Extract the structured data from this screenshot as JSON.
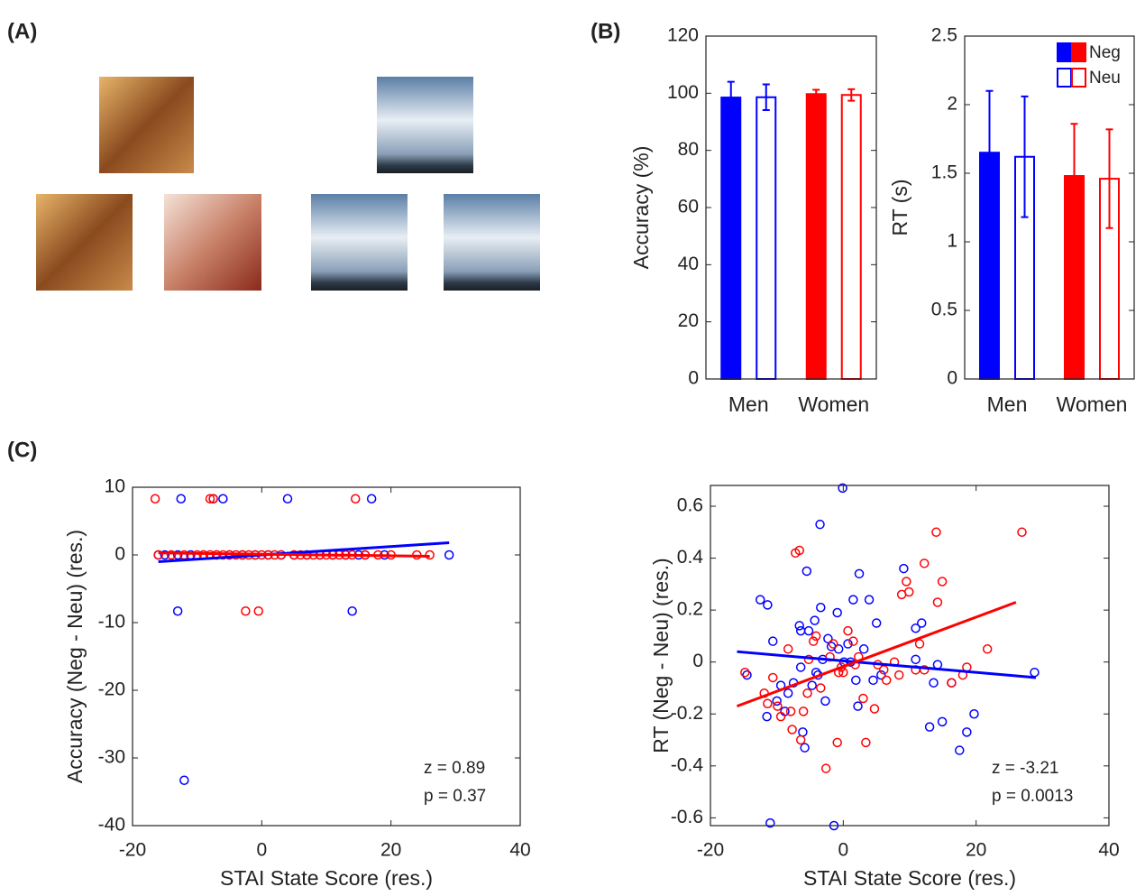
{
  "panels": [
    "(A)",
    "(B)",
    "(C)"
  ],
  "chart_data": [
    {
      "type": "bar",
      "ylabel": "Accuracy (%)",
      "categories": [
        "Men",
        "Women"
      ],
      "colors": [
        "#0000ff",
        "#ff0000"
      ],
      "series": [
        {
          "values": [
            98.5,
            99.7
          ],
          "errors": [
            5.5,
            1.5
          ],
          "filled": true
        },
        {
          "values": [
            98.6,
            99.4
          ],
          "errors": [
            4.5,
            2.0
          ],
          "filled": false
        }
      ],
      "ylim": [
        0,
        120
      ],
      "yticks": [
        0,
        20,
        40,
        60,
        80,
        100,
        120
      ],
      "legend": false
    },
    {
      "type": "bar",
      "ylabel": "RT (s)",
      "categories": [
        "Men",
        "Women"
      ],
      "colors": [
        "#0000ff",
        "#ff0000"
      ],
      "series": [
        {
          "name": "Neg",
          "values": [
            1.65,
            1.48
          ],
          "errors": [
            0.45,
            0.38
          ],
          "filled": true
        },
        {
          "name": "Neu",
          "values": [
            1.62,
            1.46
          ],
          "errors": [
            0.44,
            0.36
          ],
          "filled": false
        }
      ],
      "ylim": [
        0,
        2.5
      ],
      "yticks": [
        0,
        0.5,
        1,
        1.5,
        2,
        2.5
      ],
      "legend": "upper right"
    },
    {
      "type": "scatter",
      "xlabel": "STAI State Score (res.)",
      "ylabel": "Accuracy (Neg - Neu) (res.)",
      "xlim": [
        -20,
        40
      ],
      "xticks": [
        -20,
        0,
        20,
        40
      ],
      "ylim": [
        -40,
        10
      ],
      "yticks": [
        -40,
        -30,
        -20,
        -10,
        0,
        10
      ],
      "annotations": [
        "z = 0.89",
        "p = 0.37"
      ],
      "series": [
        {
          "color": "#0000ff",
          "x": [
            -12.5,
            -7.5,
            -6,
            4,
            17,
            -13,
            14,
            -12,
            -16,
            -15,
            -13,
            -11,
            -9,
            -7,
            -5,
            -3,
            -1,
            1,
            3,
            5,
            7,
            9,
            11,
            13,
            15,
            16,
            19,
            29
          ],
          "values": [
            8.3,
            8.3,
            8.3,
            8.3,
            8.3,
            -8.3,
            -8.3,
            -33.3,
            0,
            0,
            0,
            0,
            0,
            0,
            0,
            0,
            0,
            0,
            0,
            0,
            0,
            0,
            0,
            0,
            0,
            0,
            0,
            0
          ]
        },
        {
          "color": "#ff0000",
          "x": [
            -16.5,
            -8,
            -7.5,
            14.5,
            -2.5,
            -0.5,
            -16,
            -14,
            -12,
            -10,
            -9,
            -8,
            -7,
            -6,
            -5,
            -4,
            -3,
            -2,
            -1,
            0,
            1,
            2,
            3,
            5,
            6,
            7,
            8,
            9,
            10,
            11,
            12,
            13,
            14,
            16,
            18,
            20,
            24,
            26
          ],
          "values": [
            8.3,
            8.3,
            8.3,
            8.3,
            -8.3,
            -8.3,
            0,
            0,
            0,
            0,
            0,
            0,
            0,
            0,
            0,
            0,
            0,
            0,
            0,
            0,
            0,
            0,
            0,
            0,
            0,
            0,
            0,
            0,
            0,
            0,
            0,
            0,
            0,
            0,
            0,
            0,
            0,
            0
          ]
        }
      ],
      "fits": [
        {
          "color": "#0000ff",
          "x": [
            -16,
            29
          ],
          "values": [
            -1,
            1.8
          ]
        },
        {
          "color": "#ff0000",
          "x": [
            -16,
            26
          ],
          "values": [
            0.3,
            -0.2
          ]
        }
      ]
    },
    {
      "type": "scatter",
      "xlabel": "STAI State Score (res.)",
      "ylabel": "RT (Neg - Neu) (res.)",
      "xlim": [
        -20,
        40
      ],
      "xticks": [
        -20,
        0,
        20,
        40
      ],
      "ylim": [
        -0.63,
        0.68
      ],
      "yticks": [
        -0.6,
        -0.4,
        -0.2,
        0,
        0.2,
        0.4,
        0.6
      ],
      "annotations": [
        "z = -3.21",
        "p = 0.0013"
      ],
      "series": [
        {
          "color": "#0000ff",
          "x": [
            -14.5,
            -12.5,
            -11.4,
            -11.5,
            -11.0,
            -10.6,
            -10.0,
            -9.4,
            -8.8,
            -8.3,
            -7.5,
            -6.6,
            -6.4,
            -6.4,
            -6.1,
            -5.8,
            -5.5,
            -5.2,
            -4.7,
            -4.3,
            -4.1,
            -3.8,
            -3.5,
            -3.4,
            -3.1,
            -2.7,
            -2.3,
            -1.8,
            -1.4,
            -0.9,
            -0.7,
            -0.1,
            0.1,
            0.7,
            1.1,
            1.5,
            1.9,
            2.2,
            2.4,
            3.1,
            3.9,
            4.5,
            5.0,
            5.7,
            9.1,
            10.9,
            10.9,
            11.8,
            13.0,
            13.6,
            14.2,
            14.9,
            16.3,
            17.5,
            18.6,
            19.7,
            28.8
          ],
          "values": [
            -0.05,
            0.24,
            0.22,
            -0.21,
            -0.62,
            0.08,
            -0.15,
            -0.09,
            -0.19,
            -0.12,
            -0.08,
            0.14,
            0.12,
            -0.02,
            -0.27,
            -0.33,
            0.35,
            0.12,
            -0.09,
            0.16,
            -0.04,
            -0.05,
            0.53,
            0.21,
            0.01,
            -0.15,
            0.09,
            0.06,
            -0.63,
            0.19,
            0.05,
            0.67,
            0.0,
            0.07,
            0.0,
            0.24,
            -0.07,
            -0.17,
            0.34,
            0.05,
            0.24,
            -0.07,
            0.15,
            -0.05,
            0.36,
            0.13,
            0.01,
            0.15,
            -0.25,
            -0.08,
            -0.01,
            -0.23,
            -0.08,
            -0.34,
            -0.27,
            -0.2,
            -0.04
          ]
        },
        {
          "color": "#ff0000",
          "x": [
            -14.8,
            -11.9,
            -11.4,
            -10.6,
            -9.9,
            -9.4,
            -8.3,
            -7.9,
            -7.7,
            -7.2,
            -6.6,
            -6.4,
            -6.0,
            -5.4,
            -5.2,
            -4.5,
            -4.1,
            -3.4,
            -2.6,
            -2.0,
            -1.5,
            -0.9,
            -0.7,
            -0.3,
            0.0,
            0.7,
            1.5,
            1.8,
            2.3,
            3.0,
            3.4,
            4.7,
            5.2,
            6.1,
            6.5,
            7.7,
            8.4,
            8.8,
            9.5,
            9.9,
            10.9,
            11.5,
            12.2,
            12.2,
            14.0,
            14.2,
            14.9,
            16.3,
            18.0,
            18.6,
            21.7,
            26.9
          ],
          "values": [
            -0.04,
            -0.12,
            -0.16,
            -0.06,
            -0.17,
            -0.21,
            0.05,
            -0.19,
            -0.26,
            0.42,
            0.43,
            -0.3,
            -0.19,
            -0.12,
            0.01,
            0.08,
            0.1,
            -0.1,
            -0.41,
            0.02,
            0.07,
            -0.31,
            -0.04,
            -0.02,
            -0.04,
            0.12,
            0.08,
            -0.01,
            0.02,
            -0.14,
            -0.31,
            -0.18,
            -0.01,
            -0.03,
            -0.07,
            0.0,
            -0.05,
            0.26,
            0.31,
            0.27,
            -0.03,
            0.07,
            -0.03,
            0.38,
            0.5,
            0.23,
            0.31,
            -0.08,
            -0.05,
            -0.02,
            0.05,
            0.5
          ]
        }
      ],
      "fits": [
        {
          "color": "#0000ff",
          "x": [
            -16,
            29
          ],
          "values": [
            0.04,
            -0.06
          ]
        },
        {
          "color": "#ff0000",
          "x": [
            -16,
            26
          ],
          "values": [
            -0.17,
            0.23
          ]
        }
      ]
    }
  ]
}
